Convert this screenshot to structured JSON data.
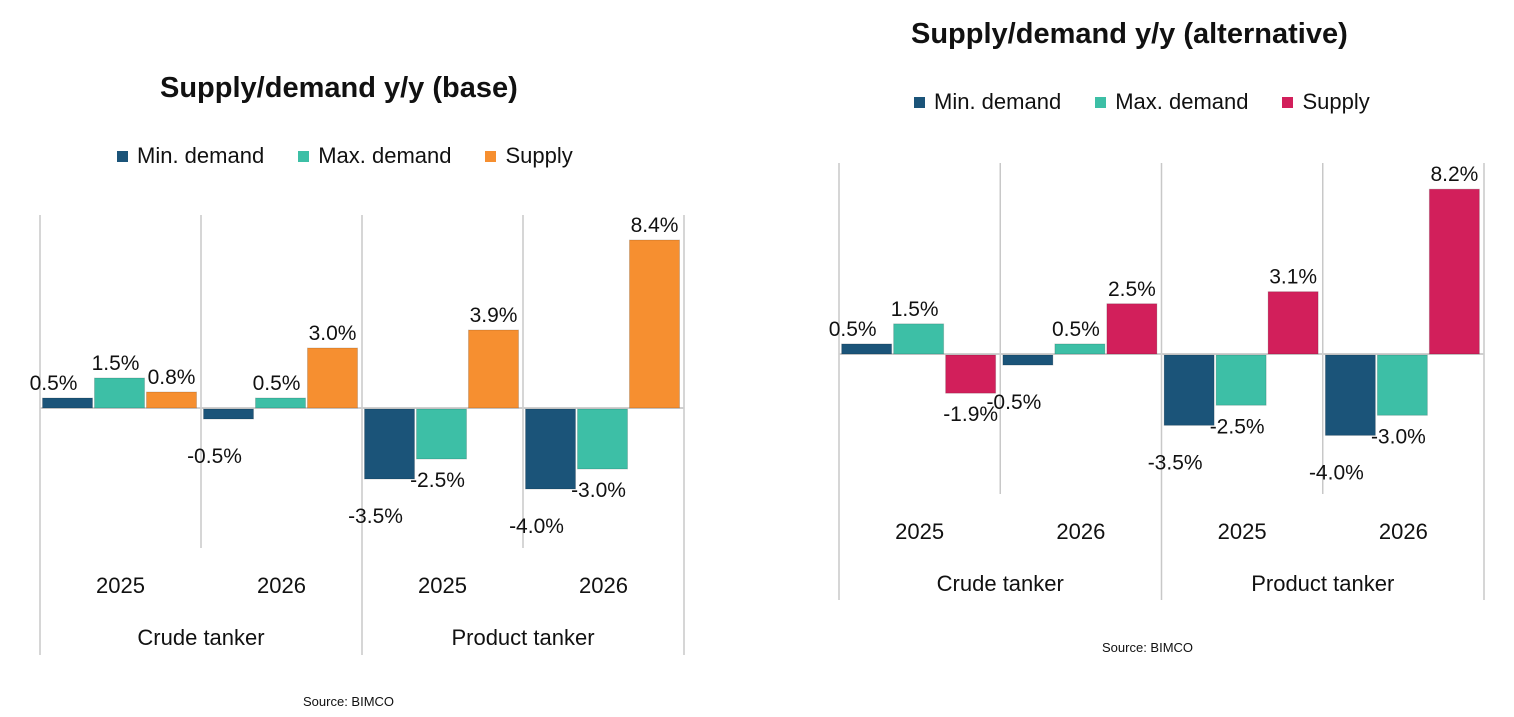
{
  "chart_data": [
    {
      "type": "bar",
      "title": "Supply/demand y/y (base)",
      "legend_position": "top",
      "groups": [
        "Crude tanker",
        "Product tanker"
      ],
      "categories": [
        "2025",
        "2026",
        "2025",
        "2026"
      ],
      "category_groups": [
        "Crude tanker",
        "Crude tanker",
        "Product tanker",
        "Product tanker"
      ],
      "series": [
        {
          "name": "Min. demand",
          "color": "#1b5479",
          "values": [
            0.5,
            -0.5,
            -3.5,
            -4.0
          ],
          "labels": [
            "0.5%",
            "-0.5%",
            "-3.5%",
            "-4.0%"
          ]
        },
        {
          "name": "Max. demand",
          "color": "#3dbfa6",
          "values": [
            1.5,
            0.5,
            -2.5,
            -3.0
          ],
          "labels": [
            "1.5%",
            "0.5%",
            "-2.5%",
            "-3.0%"
          ]
        },
        {
          "name": "Supply",
          "color": "#f68f30",
          "values": [
            0.8,
            3.0,
            3.9,
            8.4
          ],
          "labels": [
            "0.8%",
            "3.0%",
            "3.9%",
            "8.4%"
          ]
        }
      ],
      "xlabel": "",
      "ylabel": "",
      "unit": "%",
      "grid": false,
      "source": "Source: BIMCO"
    },
    {
      "type": "bar",
      "title": "Supply/demand  y/y (alternative)",
      "legend_position": "top",
      "groups": [
        "Crude tanker",
        "Product tanker"
      ],
      "categories": [
        "2025",
        "2026",
        "2025",
        "2026"
      ],
      "category_groups": [
        "Crude tanker",
        "Crude tanker",
        "Product tanker",
        "Product tanker"
      ],
      "series": [
        {
          "name": "Min. demand",
          "color": "#1b5479",
          "values": [
            0.5,
            -0.5,
            -3.5,
            -4.0
          ],
          "labels": [
            "0.5%",
            "-0.5%",
            "-3.5%",
            "-4.0%"
          ]
        },
        {
          "name": "Max. demand",
          "color": "#3dbfa6",
          "values": [
            1.5,
            0.5,
            -2.5,
            -3.0
          ],
          "labels": [
            "1.5%",
            "0.5%",
            "-2.5%",
            "-3.0%"
          ]
        },
        {
          "name": "Supply",
          "color": "#d21f5b",
          "values": [
            -1.9,
            2.5,
            3.1,
            8.2
          ],
          "labels": [
            "-1.9%",
            "2.5%",
            "3.1%",
            "8.2%"
          ]
        }
      ],
      "xlabel": "",
      "ylabel": "",
      "unit": "%",
      "grid": false,
      "source": "Source: BIMCO"
    }
  ]
}
